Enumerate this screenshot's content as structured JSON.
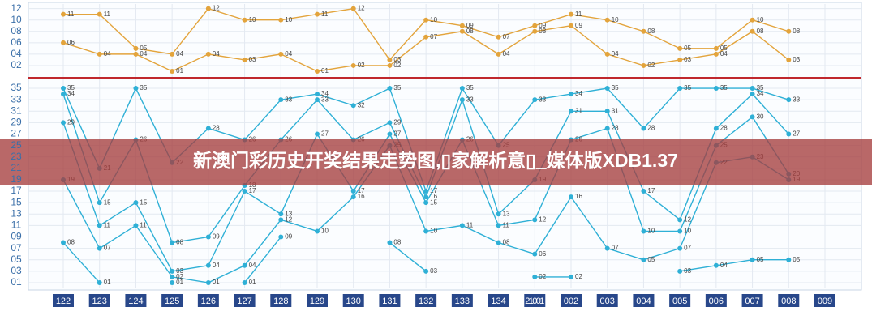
{
  "chart_data": [
    {
      "type": "line",
      "title": "新澳门彩历史开奖结果走势图,▯家解析意▯_媒体版XDB1.37",
      "ylim": [
        0,
        12.8
      ],
      "yticks": [
        {
          "value": 2,
          "label": "02"
        },
        {
          "value": 4,
          "label": "04"
        },
        {
          "value": 6,
          "label": "06"
        },
        {
          "value": 8,
          "label": "08"
        },
        {
          "value": 10,
          "label": "10"
        },
        {
          "value": 12,
          "label": "12"
        }
      ],
      "grid": true,
      "series": [
        {
          "color": "#e3a43c",
          "values": [
            11,
            11,
            5,
            4,
            12,
            10,
            10,
            11,
            12,
            3,
            10,
            9,
            7,
            9,
            11,
            10,
            8,
            5,
            5,
            10,
            8,
            null
          ],
          "value_labels": [
            "11",
            "11",
            "05",
            "04",
            "12",
            "10",
            "10",
            "11",
            "12",
            "03",
            "10",
            "09",
            "07",
            "09",
            "11",
            "10",
            "08",
            "05",
            "05",
            "10",
            "08",
            null
          ]
        },
        {
          "color": "#e3a43c",
          "values": [
            6,
            4,
            4,
            1,
            4,
            3,
            4,
            1,
            2,
            2,
            7,
            8,
            4,
            8,
            9,
            4,
            2,
            3,
            4,
            8,
            3,
            null
          ],
          "value_labels": [
            "06",
            "04",
            "04",
            "01",
            "04",
            "03",
            "04",
            "01",
            "02",
            "02",
            "07",
            "08",
            "04",
            "08",
            "09",
            "04",
            "02",
            "03",
            "04",
            "08",
            "03",
            null
          ]
        }
      ]
    },
    {
      "type": "line",
      "categories": [
        "122",
        "123",
        "124",
        "125",
        "126",
        "127",
        "128",
        "129",
        "130",
        "131",
        "132",
        "133",
        "134",
        "21001",
        "002",
        "003",
        "004",
        "005",
        "006",
        "007",
        "008",
        "009"
      ],
      "ylim": [
        0,
        36
      ],
      "yticks": [
        {
          "value": 1,
          "label": "01"
        },
        {
          "value": 3,
          "label": "03"
        },
        {
          "value": 5,
          "label": "05"
        },
        {
          "value": 7,
          "label": "07"
        },
        {
          "value": 9,
          "label": "09"
        },
        11,
        13,
        15,
        17,
        19,
        21,
        23,
        25,
        27,
        29,
        31,
        33,
        35
      ],
      "grid": true,
      "series": [
        {
          "color": "#2fb0d6",
          "values": [
            35,
            21,
            35,
            22,
            28,
            26,
            33,
            34,
            32,
            35,
            17,
            35,
            25,
            33,
            34,
            35,
            28,
            35,
            35,
            35,
            33,
            null
          ],
          "value_labels": [
            "35",
            "21",
            "35",
            "22",
            "28",
            "26",
            "33",
            "34",
            "32",
            "35",
            "17",
            "35",
            "25",
            "33",
            "34",
            "35",
            "28",
            "35",
            "35",
            "35",
            "33",
            null
          ]
        },
        {
          "color": "#2fb0d6",
          "values": [
            34,
            15,
            26,
            8,
            9,
            18,
            26,
            33,
            26,
            29,
            16,
            33,
            13,
            19,
            31,
            31,
            17,
            12,
            28,
            34,
            27,
            null
          ],
          "value_labels": [
            "34",
            "15",
            "26",
            "08",
            "09",
            "18",
            "26",
            "33",
            "26",
            "29",
            "16",
            "33",
            "13",
            "19",
            "31",
            "31",
            "17",
            "12",
            "28",
            "34",
            "27",
            null
          ]
        },
        {
          "color": "#2fb0d6",
          "values": [
            29,
            11,
            15,
            3,
            4,
            17,
            13,
            27,
            17,
            27,
            15,
            26,
            11,
            12,
            26,
            28,
            10,
            10,
            25,
            30,
            20,
            null
          ],
          "value_labels": [
            "29",
            "11",
            "15",
            "03",
            "04",
            "17",
            "13",
            "27",
            "17",
            "27",
            "15",
            "26",
            "11",
            "12",
            "26",
            "28",
            "10",
            "10",
            "25",
            "30",
            "20",
            null
          ]
        },
        {
          "color": "#2fb0d6",
          "values": [
            19,
            7,
            11,
            2,
            1,
            4,
            12,
            10,
            16,
            25,
            10,
            11,
            8,
            6,
            16,
            7,
            5,
            7,
            22,
            23,
            19,
            null
          ],
          "value_labels": [
            "19",
            "07",
            "11",
            "02",
            "01",
            "04",
            "12",
            "10",
            "16",
            "25",
            "10",
            "11",
            "08",
            "06",
            "16",
            "07",
            "05",
            "07",
            "22",
            "23",
            "19",
            null
          ]
        },
        {
          "color": "#2fb0d6",
          "values": [
            8,
            1,
            null,
            1,
            null,
            1,
            9,
            null,
            null,
            8,
            3,
            null,
            null,
            2,
            2,
            null,
            null,
            3,
            4,
            5,
            5,
            null
          ],
          "value_labels": [
            "08",
            "01",
            null,
            "01",
            null,
            "01",
            "09",
            null,
            null,
            "08",
            "03",
            null,
            null,
            "02",
            "02",
            null,
            null,
            "03",
            "04",
            "05",
            "05",
            null
          ]
        }
      ]
    }
  ]
}
